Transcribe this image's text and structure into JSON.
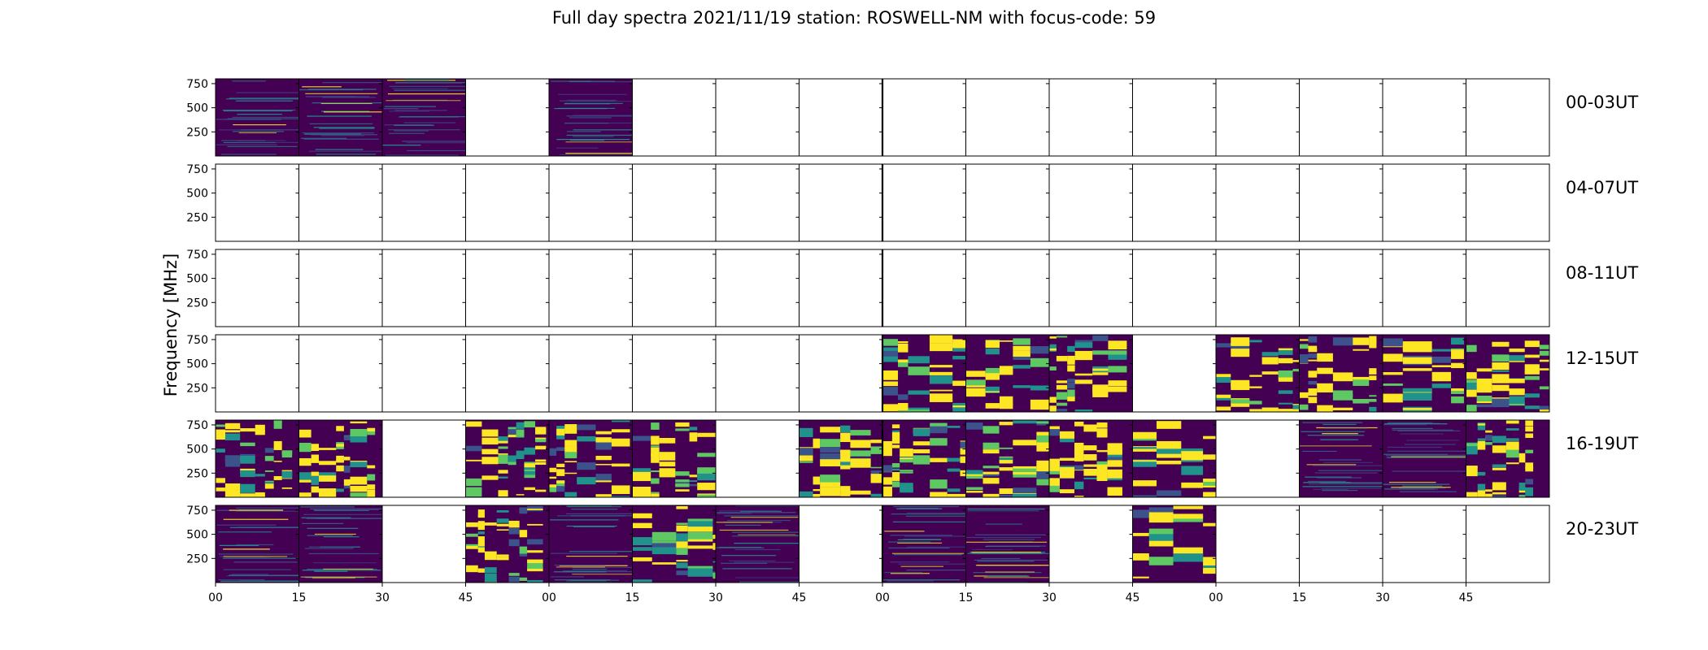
{
  "chart_data": {
    "type": "heatmap",
    "title": "Full day spectra 2021/11/19 station: ROSWELL-NM with focus-code: 59",
    "ylabel": "Frequency [MHz]",
    "xlabel": "",
    "ylim": [
      0,
      800
    ],
    "y_ticks": [
      250,
      500,
      750
    ],
    "x_tick_labels": [
      "00",
      "15",
      "30",
      "45",
      "00",
      "15",
      "30",
      "45",
      "00",
      "15",
      "30",
      "45",
      "00",
      "15",
      "30",
      "45"
    ],
    "colormap": [
      "#440154",
      "#3b528b",
      "#21918c",
      "#5ec962",
      "#fde725"
    ],
    "rows": [
      {
        "label": "00-03UT",
        "panels": [
          "low",
          "low",
          "low",
          "none",
          "low",
          "none",
          "none",
          "none",
          "none",
          "none",
          "none",
          "none",
          "none",
          "none",
          "none",
          "none"
        ]
      },
      {
        "label": "04-07UT",
        "panels": [
          "none",
          "none",
          "none",
          "none",
          "none",
          "none",
          "none",
          "none",
          "none",
          "none",
          "none",
          "none",
          "none",
          "none",
          "none",
          "none"
        ]
      },
      {
        "label": "08-11UT",
        "panels": [
          "none",
          "none",
          "none",
          "none",
          "none",
          "none",
          "none",
          "none",
          "none",
          "none",
          "none",
          "none",
          "none",
          "none",
          "none",
          "none"
        ]
      },
      {
        "label": "12-15UT",
        "panels": [
          "none",
          "none",
          "none",
          "none",
          "none",
          "none",
          "none",
          "none",
          "high",
          "high",
          "high",
          "none",
          "high",
          "high",
          "high",
          "high"
        ]
      },
      {
        "label": "16-19UT",
        "panels": [
          "high",
          "high",
          "none",
          "high",
          "high",
          "high",
          "none",
          "high",
          "high",
          "high",
          "high",
          "high",
          "none",
          "low",
          "low",
          "high"
        ]
      },
      {
        "label": "20-23UT",
        "panels": [
          "low",
          "low",
          "none",
          "high",
          "low",
          "high",
          "low",
          "none",
          "low",
          "low",
          "none",
          "high",
          "none",
          "none",
          "none",
          "none"
        ]
      }
    ]
  }
}
